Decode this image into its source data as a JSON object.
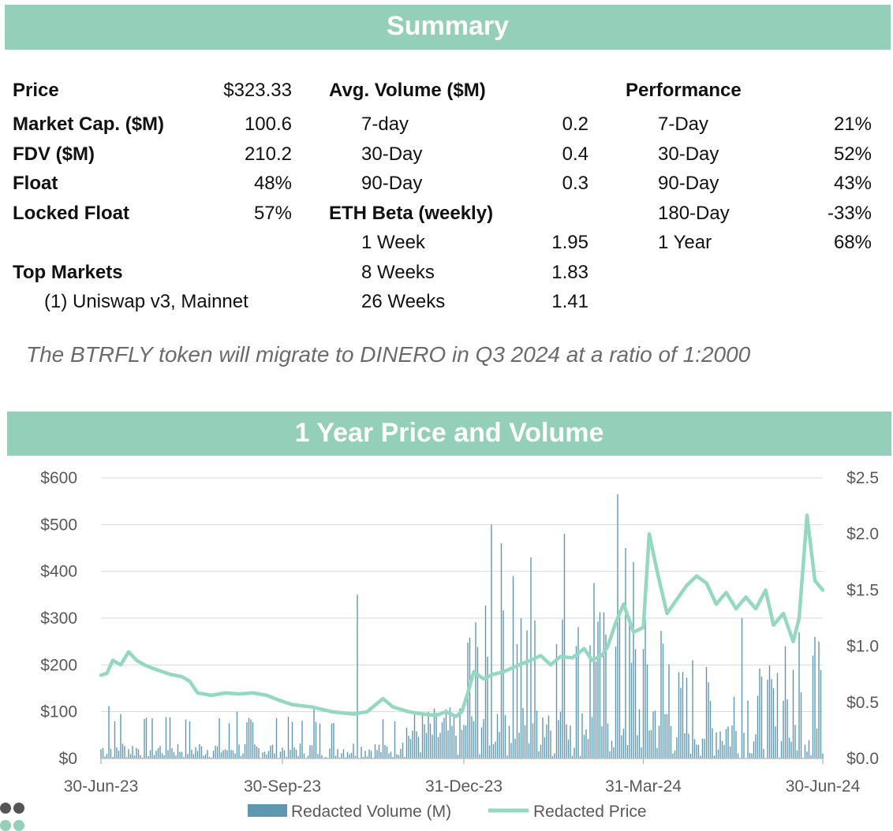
{
  "summary": {
    "title": "Summary",
    "col1": {
      "rows": [
        {
          "label": "Price",
          "value": "$323.33"
        },
        {
          "label": "Market Cap. ($M)",
          "value": "100.6"
        },
        {
          "label": "FDV ($M)",
          "value": "210.2"
        },
        {
          "label": "Float",
          "value": "48%"
        },
        {
          "label": "Locked Float",
          "value": "57%"
        }
      ],
      "top_markets_label": "Top Markets",
      "top_markets": [
        "(1) Uniswap v3, Mainnet"
      ]
    },
    "col2": {
      "avg_volume_label": "Avg. Volume ($M)",
      "avg_volume": [
        {
          "label": "7-day",
          "value": "0.2"
        },
        {
          "label": "30-Day",
          "value": "0.4"
        },
        {
          "label": "90-Day",
          "value": "0.3"
        }
      ],
      "beta_label": "ETH Beta (weekly)",
      "beta": [
        {
          "label": "1 Week",
          "value": "1.95"
        },
        {
          "label": "8 Weeks",
          "value": "1.83"
        },
        {
          "label": "26 Weeks",
          "value": "1.41"
        }
      ]
    },
    "col3": {
      "performance_label": "Performance",
      "performance": [
        {
          "label": "7-Day",
          "value": "21%"
        },
        {
          "label": "30-Day",
          "value": "52%"
        },
        {
          "label": "90-Day",
          "value": "43%"
        },
        {
          "label": "180-Day",
          "value": "-33%"
        },
        {
          "label": "1 Year",
          "value": "68%"
        }
      ]
    },
    "note": "The BTRFLY token will migrate to DINERO in Q3 2024 at a ratio of 1:2000"
  },
  "chart_data": {
    "type": "bar+line",
    "title": "1 Year Price and Volume",
    "x_tick_labels": [
      "30-Jun-23",
      "30-Sep-23",
      "31-Dec-23",
      "31-Mar-24",
      "30-Jun-24"
    ],
    "left_axis": {
      "ticks": [
        "$0",
        "$100",
        "$200",
        "$300",
        "$400",
        "$500",
        "$600"
      ],
      "ylim": [
        0,
        600
      ]
    },
    "right_axis": {
      "ticks": [
        "$0.0",
        "$0.5",
        "$1.0",
        "$1.5",
        "$2.0",
        "$2.5"
      ],
      "ylim": [
        0,
        2.5
      ]
    },
    "legend": [
      "Redacted Volume (M)",
      "Redacted Price"
    ],
    "legend_position": "bottom",
    "colors": {
      "volume": "#5e98b0",
      "price": "#93d8bf",
      "banner": "#93cfb9"
    },
    "price_keypoints": [
      [
        "2023-06-30",
        178
      ],
      [
        "2023-07-03",
        182
      ],
      [
        "2023-07-06",
        210
      ],
      [
        "2023-07-10",
        200
      ],
      [
        "2023-07-14",
        228
      ],
      [
        "2023-07-18",
        210
      ],
      [
        "2023-07-22",
        200
      ],
      [
        "2023-07-28",
        190
      ],
      [
        "2023-08-04",
        180
      ],
      [
        "2023-08-10",
        175
      ],
      [
        "2023-08-14",
        165
      ],
      [
        "2023-08-18",
        140
      ],
      [
        "2023-08-25",
        135
      ],
      [
        "2023-09-01",
        140
      ],
      [
        "2023-09-08",
        138
      ],
      [
        "2023-09-15",
        140
      ],
      [
        "2023-09-22",
        135
      ],
      [
        "2023-09-28",
        125
      ],
      [
        "2023-10-05",
        115
      ],
      [
        "2023-10-15",
        110
      ],
      [
        "2023-10-25",
        100
      ],
      [
        "2023-11-05",
        95
      ],
      [
        "2023-11-12",
        100
      ],
      [
        "2023-11-20",
        128
      ],
      [
        "2023-11-25",
        110
      ],
      [
        "2023-12-03",
        100
      ],
      [
        "2023-12-10",
        95
      ],
      [
        "2023-12-17",
        92
      ],
      [
        "2023-12-22",
        100
      ],
      [
        "2023-12-27",
        90
      ],
      [
        "2023-12-30",
        100
      ],
      [
        "2024-01-02",
        140
      ],
      [
        "2024-01-05",
        185
      ],
      [
        "2024-01-10",
        170
      ],
      [
        "2024-01-15",
        180
      ],
      [
        "2024-01-20",
        185
      ],
      [
        "2024-01-28",
        200
      ],
      [
        "2024-02-03",
        210
      ],
      [
        "2024-02-08",
        220
      ],
      [
        "2024-02-13",
        200
      ],
      [
        "2024-02-18",
        218
      ],
      [
        "2024-02-24",
        215
      ],
      [
        "2024-03-01",
        235
      ],
      [
        "2024-03-05",
        210
      ],
      [
        "2024-03-10",
        220
      ],
      [
        "2024-03-13",
        240
      ],
      [
        "2024-03-17",
        290
      ],
      [
        "2024-03-21",
        330
      ],
      [
        "2024-03-26",
        270
      ],
      [
        "2024-03-31",
        280
      ],
      [
        "2024-04-03",
        480
      ],
      [
        "2024-04-07",
        400
      ],
      [
        "2024-04-12",
        310
      ],
      [
        "2024-04-17",
        340
      ],
      [
        "2024-04-22",
        370
      ],
      [
        "2024-04-27",
        390
      ],
      [
        "2024-05-02",
        375
      ],
      [
        "2024-05-07",
        330
      ],
      [
        "2024-05-12",
        355
      ],
      [
        "2024-05-17",
        320
      ],
      [
        "2024-05-22",
        345
      ],
      [
        "2024-05-27",
        320
      ],
      [
        "2024-06-01",
        360
      ],
      [
        "2024-06-05",
        285
      ],
      [
        "2024-06-10",
        310
      ],
      [
        "2024-06-15",
        250
      ],
      [
        "2024-06-18",
        300
      ],
      [
        "2024-06-22",
        520
      ],
      [
        "2024-06-26",
        380
      ],
      [
        "2024-06-30",
        360
      ]
    ],
    "volume_series_note": "daily volume bars, mostly $0–$100, spikes to ~$500–$560 in Jan–Mar 2024"
  }
}
